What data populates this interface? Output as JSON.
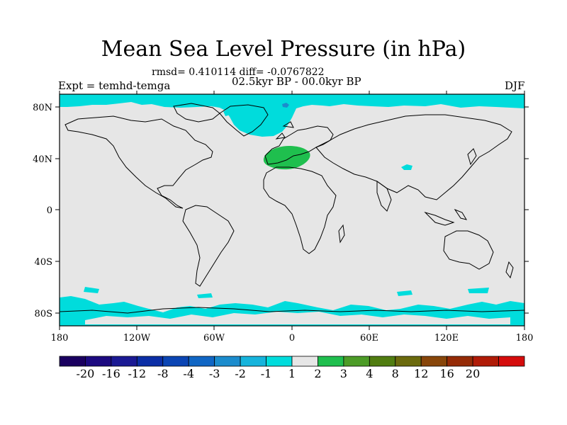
{
  "chart_data": {
    "type": "heatmap",
    "title": "Mean Sea Level Pressure (in hPa)",
    "stats": "rmsd= 0.410114 diff= -0.0767822",
    "period": "02.5kyr BP - 00.0kyr BP",
    "experiment": "Expt = temhd-temga",
    "season": "DJF",
    "x_axis": {
      "range": [
        -180,
        180
      ],
      "ticks": [
        -180,
        -120,
        -60,
        0,
        60,
        120,
        180
      ],
      "tick_labels": [
        "180",
        "120W",
        "60W",
        "0",
        "60E",
        "120E",
        "180"
      ]
    },
    "y_axis": {
      "range": [
        -90,
        90
      ],
      "ticks": [
        80,
        40,
        0,
        -40,
        -80
      ],
      "tick_labels": [
        "80N",
        "40N",
        "0",
        "40S",
        "80S"
      ]
    },
    "background_value_bin": [
      -1,
      1
    ],
    "anomaly_regions": [
      {
        "name": "arctic-negative",
        "bin": [
          -2,
          -1
        ],
        "note": "Arctic Ocean and Greenland–Norwegian Sea"
      },
      {
        "name": "antarctic-negative",
        "bin": [
          -2,
          -1
        ],
        "note": "Southern Ocean / Antarctic coast"
      },
      {
        "name": "north-atlantic-iberia-positive",
        "bin": [
          1,
          2
        ],
        "note": "Iberia and western Mediterranean"
      },
      {
        "name": "tibet-negative",
        "bin": [
          -2,
          -1
        ],
        "note": "small patch over central Asia"
      }
    ],
    "colorbar": {
      "levels": [
        "-20",
        "-16",
        "-12",
        "-8",
        "-4",
        "-3",
        "-2",
        "-1",
        "1",
        "2",
        "3",
        "4",
        "8",
        "12",
        "16",
        "20"
      ],
      "colors": [
        "#1a0060",
        "#1c0a80",
        "#1b1a94",
        "#0b2ea6",
        "#0b45b4",
        "#1066c4",
        "#1b8ccd",
        "#16b4dc",
        "#00dcdc",
        "#e6e6e6",
        "#1fbf4e",
        "#4c9c27",
        "#507d10",
        "#6b6a0d",
        "#88460a",
        "#952b06",
        "#b01b07",
        "#d50c0c"
      ]
    }
  },
  "colors": {
    "land_ocean_background": "#e6e6e6",
    "negative_anomaly": "#00dcdc",
    "positive_anomaly": "#1fbf4e",
    "deep_negative": "#1b8ccd",
    "coastline": "#000000"
  }
}
